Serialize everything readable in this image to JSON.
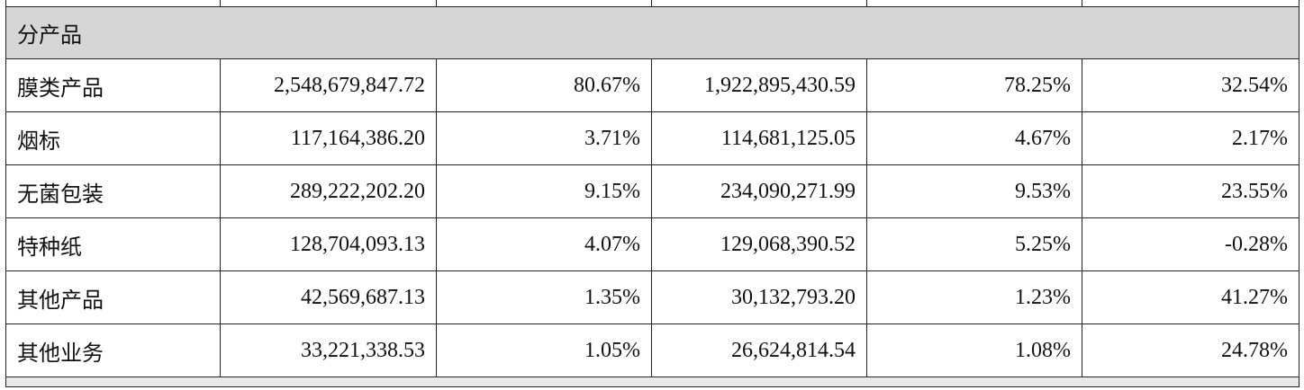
{
  "section": {
    "title": "分产品"
  },
  "rows": [
    {
      "name": "膜类产品",
      "c2": "2,548,679,847.72",
      "c3": "80.67%",
      "c4": "1,922,895,430.59",
      "c5": "78.25%",
      "c6": "32.54%"
    },
    {
      "name": "烟标",
      "c2": "117,164,386.20",
      "c3": "3.71%",
      "c4": "114,681,125.05",
      "c5": "4.67%",
      "c6": "2.17%"
    },
    {
      "name": "无菌包装",
      "c2": "289,222,202.20",
      "c3": "9.15%",
      "c4": "234,090,271.99",
      "c5": "9.53%",
      "c6": "23.55%"
    },
    {
      "name": "特种纸",
      "c2": "128,704,093.13",
      "c3": "4.07%",
      "c4": "129,068,390.52",
      "c5": "5.25%",
      "c6": "-0.28%"
    },
    {
      "name": "其他产品",
      "c2": "42,569,687.13",
      "c3": "1.35%",
      "c4": "30,132,793.20",
      "c5": "1.23%",
      "c6": "41.27%"
    },
    {
      "name": "其他业务",
      "c2": "33,221,338.53",
      "c3": "1.05%",
      "c4": "26,624,814.54",
      "c5": "1.08%",
      "c6": "24.78%"
    }
  ]
}
